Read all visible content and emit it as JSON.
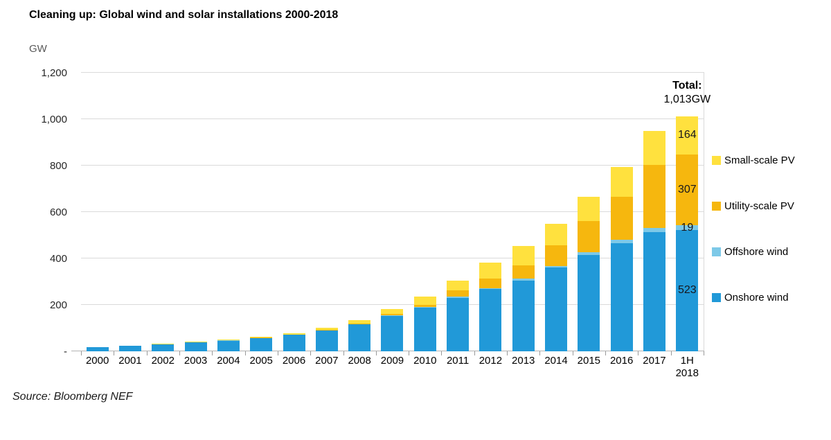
{
  "title": "Cleaning up: Global wind and solar installations 2000-2018",
  "y_axis_unit": "GW",
  "source": "Source: Bloomberg NEF",
  "annotations": {
    "total_line1": "Total:",
    "total_line2": "1,013GW",
    "last_bar_labels": [
      {
        "series_index": 0,
        "text": "523"
      },
      {
        "series_index": 1,
        "text": "19"
      },
      {
        "series_index": 2,
        "text": "307"
      },
      {
        "series_index": 3,
        "text": "164"
      }
    ]
  },
  "legend": [
    {
      "label": "Small-scale PV",
      "color": "#ffe13e"
    },
    {
      "label": "Utility-scale PV",
      "color": "#f6b70e"
    },
    {
      "label": "Offshore wind",
      "color": "#7dc9e8"
    },
    {
      "label": "Onshore wind",
      "color": "#2199d8"
    }
  ],
  "chart_data": {
    "type": "bar",
    "stacked": true,
    "title": "Cleaning up: Global wind and solar installations 2000-2018",
    "xlabel": "",
    "ylabel": "GW",
    "ylim": [
      0,
      1200
    ],
    "grid": true,
    "legend_position": "right",
    "categories": [
      "2000",
      "2001",
      "2002",
      "2003",
      "2004",
      "2005",
      "2006",
      "2007",
      "2008",
      "2009",
      "2010",
      "2011",
      "2012",
      "2013",
      "2014",
      "2015",
      "2016",
      "2017",
      "1H\n2018"
    ],
    "series": [
      {
        "name": "Onshore wind",
        "color": "#2199d8",
        "values": [
          17,
          23,
          30,
          38,
          46,
          57,
          71,
          90,
          115,
          153,
          189,
          231,
          268,
          305,
          360,
          415,
          466,
          512,
          523
        ]
      },
      {
        "name": "Offshore wind",
        "color": "#7dc9e8",
        "values": [
          0,
          0,
          0,
          1,
          1,
          1,
          1,
          1,
          1,
          2,
          3,
          4,
          5,
          7,
          8,
          12,
          14,
          18,
          19
        ]
      },
      {
        "name": "Utility-scale PV",
        "color": "#f6b70e",
        "values": [
          0,
          0,
          0,
          0,
          0,
          1,
          1,
          2,
          3,
          6,
          8,
          27,
          40,
          57,
          88,
          133,
          186,
          272,
          307
        ]
      },
      {
        "name": "Small-scale PV",
        "color": "#ffe13e",
        "values": [
          1,
          1,
          2,
          2,
          3,
          4,
          6,
          9,
          14,
          21,
          37,
          42,
          68,
          86,
          94,
          105,
          129,
          146,
          164
        ]
      }
    ],
    "yticks": [
      {
        "value": 0,
        "label": "-"
      },
      {
        "value": 200,
        "label": "200"
      },
      {
        "value": 400,
        "label": "400"
      },
      {
        "value": 600,
        "label": "600"
      },
      {
        "value": 800,
        "label": "800"
      },
      {
        "value": 1000,
        "label": "1,000"
      },
      {
        "value": 1200,
        "label": "1,200"
      }
    ],
    "totals_note": "1H 2018 total is 1,013 GW"
  }
}
